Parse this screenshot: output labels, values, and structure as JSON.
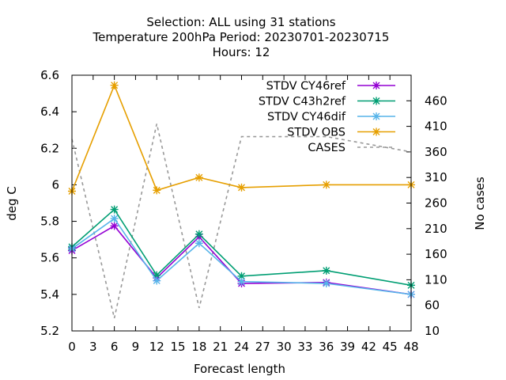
{
  "chart_data": {
    "type": "line",
    "title_lines": [
      "Selection: ALL using    31 stations",
      "Temperature 200hPa   Period: 20230701-20230715",
      "Hours:  12"
    ],
    "xlabel": "Forecast length",
    "ylabel": "deg C",
    "y2label": "No cases",
    "xlim": [
      0,
      48
    ],
    "ylim": [
      5.2,
      6.6
    ],
    "y2lim": [
      10,
      510
    ],
    "x_ticks": [
      0,
      3,
      6,
      9,
      12,
      15,
      18,
      21,
      24,
      27,
      30,
      33,
      36,
      39,
      42,
      45,
      48
    ],
    "y_ticks": [
      5.2,
      5.4,
      5.6,
      5.8,
      6,
      6.2,
      6.4,
      6.6
    ],
    "y_tick_labels": [
      "5.2",
      "5.4",
      "5.6",
      "5.8",
      "6",
      "6.2",
      "6.4",
      "6.6"
    ],
    "y2_ticks": [
      10,
      60,
      110,
      160,
      210,
      260,
      310,
      360,
      410,
      460
    ],
    "legend_position": "top-right",
    "series": [
      {
        "name": "STDV CY46ref",
        "color": "#9400d3",
        "axis": "y",
        "marker": "x",
        "x": [
          0,
          6,
          12,
          18,
          24,
          36,
          48
        ],
        "values": [
          5.64,
          5.775,
          5.49,
          5.715,
          5.46,
          5.465,
          5.4
        ]
      },
      {
        "name": "STDV C43h2ref",
        "color": "#009e73",
        "axis": "y",
        "marker": "x",
        "x": [
          0,
          6,
          12,
          18,
          24,
          36,
          48
        ],
        "values": [
          5.66,
          5.865,
          5.505,
          5.73,
          5.5,
          5.53,
          5.45
        ]
      },
      {
        "name": "STDV CY46dif",
        "color": "#56b4e9",
        "axis": "y",
        "marker": "x",
        "x": [
          0,
          6,
          12,
          18,
          24,
          36,
          48
        ],
        "values": [
          5.65,
          5.815,
          5.475,
          5.68,
          5.47,
          5.46,
          5.4
        ]
      },
      {
        "name": "STDV OBS",
        "color": "#e69f00",
        "axis": "y",
        "marker": "x",
        "x": [
          0,
          6,
          12,
          18,
          24,
          36,
          48
        ],
        "values": [
          5.965,
          6.545,
          5.97,
          6.04,
          5.985,
          6.0,
          6.0
        ]
      },
      {
        "name": "CASES",
        "color": "#999999",
        "axis": "y2",
        "marker": "none",
        "dashed": true,
        "x": [
          0,
          6,
          12,
          18,
          24,
          36,
          42,
          48
        ],
        "values": [
          385,
          35,
          415,
          55,
          390,
          390,
          375,
          360
        ]
      }
    ]
  }
}
